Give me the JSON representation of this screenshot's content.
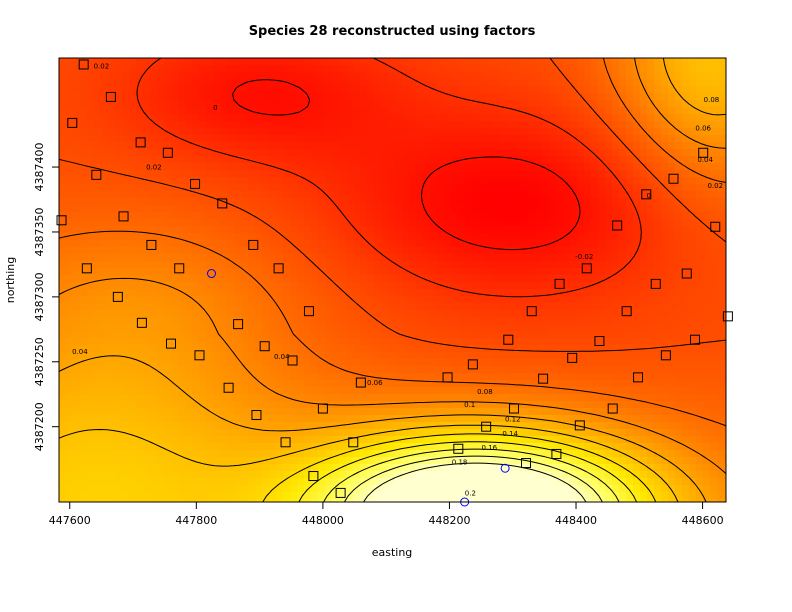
{
  "chart_data": {
    "type": "heatmap",
    "title": "Species 28 reconstructed using factors",
    "xlabel": "easting",
    "ylabel": "northing",
    "xlim": [
      447583,
      448637
    ],
    "ylim": [
      4387142,
      4387484
    ],
    "x_ticks": [
      447600,
      447800,
      448000,
      448200,
      448400,
      448600
    ],
    "x_tick_labels": [
      "447600",
      "447800",
      "448000",
      "448200",
      "448400",
      "448600"
    ],
    "y_ticks": [
      4387200,
      4387250,
      4387300,
      4387350,
      4387400
    ],
    "y_tick_labels": [
      "4387200",
      "4387250",
      "4387300",
      "4387350",
      "4387400"
    ],
    "grid": false,
    "colormap": [
      "#ff0000",
      "#ff4000",
      "#ff7a00",
      "#ffb400",
      "#ffe800",
      "#ffff60",
      "#ffffd0"
    ],
    "contour_labels": [
      {
        "text": "0.02",
        "x": 447650,
        "y": 4387476
      },
      {
        "text": "0",
        "x": 447830,
        "y": 4387444
      },
      {
        "text": "0.02",
        "x": 447733,
        "y": 4387398
      },
      {
        "text": "0.08",
        "x": 448614,
        "y": 4387450
      },
      {
        "text": "0.06",
        "x": 448601,
        "y": 4387428
      },
      {
        "text": "0.04",
        "x": 448604,
        "y": 4387404
      },
      {
        "text": "0.02",
        "x": 448620,
        "y": 4387384
      },
      {
        "text": "0",
        "x": 448515,
        "y": 4387376
      },
      {
        "text": "-0.02",
        "x": 448413,
        "y": 4387329
      },
      {
        "text": "0.04",
        "x": 447616,
        "y": 4387256
      },
      {
        "text": "0.04",
        "x": 447935,
        "y": 4387252
      },
      {
        "text": "0.06",
        "x": 448082,
        "y": 4387232
      },
      {
        "text": "0.08",
        "x": 448256,
        "y": 4387225
      },
      {
        "text": "0.1",
        "x": 448232,
        "y": 4387215
      },
      {
        "text": "0.12",
        "x": 448300,
        "y": 4387204
      },
      {
        "text": "0.14",
        "x": 448296,
        "y": 4387193
      },
      {
        "text": "0.16",
        "x": 448263,
        "y": 4387182
      },
      {
        "text": "0.18",
        "x": 448216,
        "y": 4387171
      },
      {
        "text": "0.2",
        "x": 448233,
        "y": 4387147
      }
    ],
    "series": [
      {
        "marker": "square",
        "color": "#000000",
        "points": [
          [
            447622,
            4387479
          ],
          [
            447665,
            4387454
          ],
          [
            447604,
            4387434
          ],
          [
            447712,
            4387419
          ],
          [
            447755,
            4387411
          ],
          [
            447642,
            4387394
          ],
          [
            447798,
            4387387
          ],
          [
            447841,
            4387372
          ],
          [
            447587,
            4387359
          ],
          [
            447685,
            4387362
          ],
          [
            448465,
            4387355
          ],
          [
            448511,
            4387379
          ],
          [
            448554,
            4387391
          ],
          [
            448601,
            4387411
          ],
          [
            448620,
            4387354
          ],
          [
            447729,
            4387340
          ],
          [
            447890,
            4387340
          ],
          [
            447627,
            4387322
          ],
          [
            447773,
            4387322
          ],
          [
            447930,
            4387322
          ],
          [
            448417,
            4387322
          ],
          [
            448575,
            4387318
          ],
          [
            448374,
            4387310
          ],
          [
            448526,
            4387310
          ],
          [
            447676,
            4387300
          ],
          [
            447978,
            4387289
          ],
          [
            448330,
            4387289
          ],
          [
            448640,
            4387285
          ],
          [
            448480,
            4387289
          ],
          [
            447714,
            4387280
          ],
          [
            447866,
            4387279
          ],
          [
            447760,
            4387264
          ],
          [
            447908,
            4387262
          ],
          [
            448293,
            4387267
          ],
          [
            448437,
            4387266
          ],
          [
            448588,
            4387267
          ],
          [
            447952,
            4387251
          ],
          [
            448237,
            4387248
          ],
          [
            448394,
            4387253
          ],
          [
            448542,
            4387255
          ],
          [
            447805,
            4387255
          ],
          [
            448197,
            4387238
          ],
          [
            448348,
            4387237
          ],
          [
            448498,
            4387238
          ],
          [
            448060,
            4387234
          ],
          [
            447851,
            4387230
          ],
          [
            448000,
            4387214
          ],
          [
            448302,
            4387214
          ],
          [
            448458,
            4387214
          ],
          [
            447895,
            4387209
          ],
          [
            448258,
            4387200
          ],
          [
            448406,
            4387201
          ],
          [
            447941,
            4387188
          ],
          [
            448048,
            4387188
          ],
          [
            448214,
            4387183
          ],
          [
            448369,
            4387179
          ],
          [
            447985,
            4387162
          ],
          [
            448321,
            4387172
          ],
          [
            448028,
            4387149
          ]
        ]
      },
      {
        "marker": "circle",
        "color": "#0000ff",
        "points": [
          [
            447824,
            4387318
          ],
          [
            448288,
            4387168
          ],
          [
            448224,
            4387142
          ]
        ]
      }
    ]
  }
}
